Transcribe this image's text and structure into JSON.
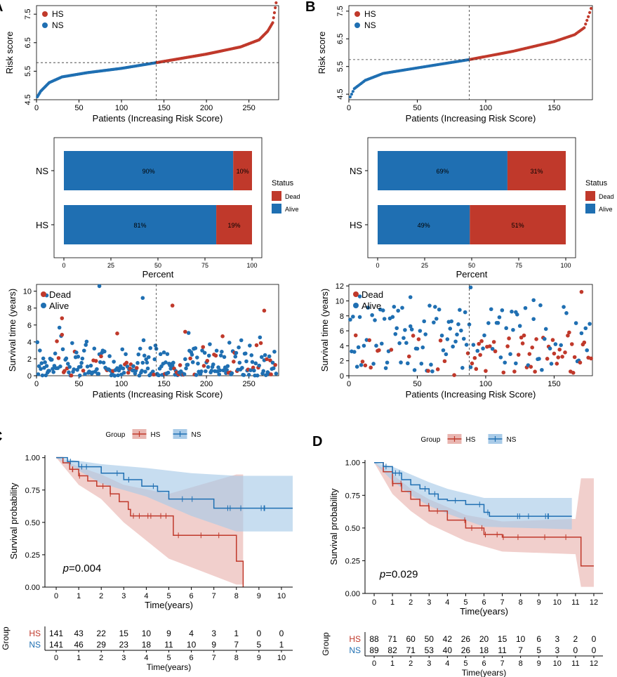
{
  "colors": {
    "hs": "#c0392b",
    "ns": "#1f6fb2",
    "hs_fill": "#e9b6b1",
    "ns_fill": "#a9cbe8",
    "axis": "#000000",
    "grid": "#bbbbbb"
  },
  "chart_data": [
    {
      "panel": "A",
      "type": "scatter",
      "name": "risk-score-A",
      "panel_label": "A",
      "xlabel": "Patients (Increasing Risk Score)",
      "ylabel": "Risk score",
      "xlim": [
        0,
        285
      ],
      "ylim": [
        4.5,
        7.8
      ],
      "xticks": [
        "0",
        "50",
        "100",
        "150",
        "200",
        "250"
      ],
      "yticks": [
        "4.5",
        "5.5",
        "6.5",
        "7.5"
      ],
      "legend": [
        "HS",
        "NS"
      ],
      "n_patients": 282,
      "cutoff_index": 141,
      "cutoff_score": 5.8,
      "curve_points": [
        [
          1,
          4.6
        ],
        [
          5,
          4.8
        ],
        [
          15,
          5.1
        ],
        [
          30,
          5.3
        ],
        [
          60,
          5.45
        ],
        [
          100,
          5.6
        ],
        [
          141,
          5.8
        ],
        [
          200,
          6.1
        ],
        [
          240,
          6.35
        ],
        [
          262,
          6.6
        ],
        [
          272,
          6.9
        ],
        [
          278,
          7.2
        ],
        [
          282,
          7.9
        ]
      ]
    },
    {
      "panel": "B",
      "type": "scatter",
      "name": "risk-score-B",
      "panel_label": "B",
      "xlabel": "Patients (Increasing Risk Score)",
      "ylabel": "Risk score",
      "xlim": [
        0,
        178
      ],
      "ylim": [
        4.3,
        7.7
      ],
      "xticks": [
        "0",
        "50",
        "100",
        "150"
      ],
      "yticks": [
        "4.5",
        "5.5",
        "6.5",
        "7.5"
      ],
      "legend": [
        "HS",
        "NS"
      ],
      "n_patients": 177,
      "cutoff_index": 88,
      "cutoff_score": 5.75,
      "curve_points": [
        [
          1,
          4.4
        ],
        [
          4,
          4.7
        ],
        [
          12,
          5.0
        ],
        [
          25,
          5.25
        ],
        [
          50,
          5.45
        ],
        [
          88,
          5.75
        ],
        [
          120,
          6.05
        ],
        [
          150,
          6.4
        ],
        [
          165,
          6.65
        ],
        [
          172,
          6.9
        ],
        [
          175,
          7.3
        ],
        [
          177,
          7.6
        ]
      ]
    },
    {
      "panel": "A",
      "type": "bar",
      "name": "status-A",
      "xlabel": "Percent",
      "xticks": [
        "0",
        "25",
        "50",
        "75",
        "100"
      ],
      "categories": [
        "NS",
        "HS"
      ],
      "series": [
        {
          "name": "Alive",
          "values": [
            90,
            81
          ]
        },
        {
          "name": "Dead",
          "values": [
            10,
            19
          ]
        }
      ],
      "labels": [
        [
          "90%",
          "10%"
        ],
        [
          "81%",
          "19%"
        ]
      ],
      "legend_title": "Status",
      "legend": [
        "Dead",
        "Alive"
      ]
    },
    {
      "panel": "B",
      "type": "bar",
      "name": "status-B",
      "xlabel": "Percent",
      "xticks": [
        "0",
        "25",
        "50",
        "75",
        "100"
      ],
      "categories": [
        "NS",
        "HS"
      ],
      "series": [
        {
          "name": "Alive",
          "values": [
            69,
            49
          ]
        },
        {
          "name": "Dead",
          "values": [
            31,
            51
          ]
        }
      ],
      "labels": [
        [
          "69%",
          "31%"
        ],
        [
          "49%",
          "51%"
        ]
      ],
      "legend_title": "Status",
      "legend": [
        "Dead",
        "Alive"
      ]
    },
    {
      "panel": "A",
      "type": "scatter",
      "name": "survival-time-A",
      "xlabel": "Patients (Increasing Risk Score)",
      "ylabel": "Survival time (years)",
      "xlim": [
        0,
        285
      ],
      "ylim": [
        0,
        10.8
      ],
      "xticks": [
        "0",
        "50",
        "100",
        "150",
        "200",
        "250"
      ],
      "yticks": [
        "0",
        "2",
        "4",
        "6",
        "8",
        "10"
      ],
      "legend": [
        "Dead",
        "Alive"
      ],
      "cutoff_index": 141,
      "n_patients": 282,
      "dead_fraction": 0.145,
      "highlight_points": [
        {
          "x": 74,
          "y": 10.6,
          "status": "Alive"
        },
        {
          "x": 30,
          "y": 6.8,
          "status": "Dead"
        },
        {
          "x": 125,
          "y": 9.2,
          "status": "Alive"
        },
        {
          "x": 160,
          "y": 8.3,
          "status": "Dead"
        },
        {
          "x": 268,
          "y": 7.7,
          "status": "Dead"
        },
        {
          "x": 95,
          "y": 5.0,
          "status": "Dead"
        },
        {
          "x": 175,
          "y": 5.2,
          "status": "Dead"
        },
        {
          "x": 12,
          "y": 9.5,
          "status": "Alive"
        }
      ]
    },
    {
      "panel": "B",
      "type": "scatter",
      "name": "survival-time-B",
      "xlabel": "Patients (Increasing Risk Score)",
      "ylabel": "Survival time (years)",
      "xlim": [
        0,
        178
      ],
      "ylim": [
        0,
        12.2
      ],
      "xticks": [
        "0",
        "50",
        "100",
        "150"
      ],
      "yticks": [
        "0",
        "2",
        "4",
        "6",
        "8",
        "10",
        "12"
      ],
      "legend": [
        "Dead",
        "Alive"
      ],
      "cutoff_index": 88,
      "n_patients": 177,
      "dead_fraction": 0.38,
      "highlight_points": [
        {
          "x": 89,
          "y": 11.8,
          "status": "Alive"
        },
        {
          "x": 170,
          "y": 11.2,
          "status": "Dead"
        },
        {
          "x": 45,
          "y": 10.5,
          "status": "Alive"
        },
        {
          "x": 135,
          "y": 10.1,
          "status": "Alive"
        },
        {
          "x": 8,
          "y": 10.6,
          "status": "Alive"
        },
        {
          "x": 122,
          "y": 8.5,
          "status": "Alive"
        }
      ]
    },
    {
      "panel": "C",
      "type": "line",
      "name": "km-C",
      "panel_label": "C",
      "xlabel": "Time(years)",
      "ylabel": "Survival probability",
      "xlim": [
        -0.5,
        10.5
      ],
      "ylim": [
        0,
        1.02
      ],
      "xticks": [
        "0",
        "1",
        "2",
        "3",
        "4",
        "5",
        "6",
        "7",
        "8",
        "9",
        "10"
      ],
      "yticks": [
        "0.00",
        "0.25",
        "0.50",
        "0.75",
        "1.00"
      ],
      "legend_title": "Group",
      "legend": [
        "HS",
        "NS"
      ],
      "pvalue_prefix": "p",
      "pvalue": "=0.004",
      "series": [
        {
          "name": "HS",
          "points": [
            [
              0,
              1.0
            ],
            [
              0.3,
              0.96
            ],
            [
              0.6,
              0.91
            ],
            [
              1.0,
              0.86
            ],
            [
              1.4,
              0.82
            ],
            [
              1.8,
              0.78
            ],
            [
              2.4,
              0.72
            ],
            [
              2.8,
              0.66
            ],
            [
              3.2,
              0.6
            ],
            [
              3.3,
              0.55
            ],
            [
              5.2,
              0.4
            ],
            [
              8.0,
              0.2
            ],
            [
              8.3,
              0.0
            ]
          ],
          "upper": [
            [
              0,
              1.0
            ],
            [
              1,
              0.93
            ],
            [
              2,
              0.87
            ],
            [
              3,
              0.79
            ],
            [
              5,
              0.72
            ],
            [
              8,
              0.87
            ],
            [
              8.3,
              0.87
            ]
          ],
          "lower": [
            [
              0,
              1.0
            ],
            [
              1,
              0.79
            ],
            [
              2,
              0.68
            ],
            [
              3,
              0.5
            ],
            [
              5,
              0.22
            ],
            [
              8,
              0.02
            ],
            [
              8.3,
              0.02
            ]
          ]
        },
        {
          "name": "NS",
          "points": [
            [
              0,
              1.0
            ],
            [
              0.5,
              0.97
            ],
            [
              1,
              0.93
            ],
            [
              2,
              0.88
            ],
            [
              3,
              0.83
            ],
            [
              3.8,
              0.78
            ],
            [
              4.5,
              0.74
            ],
            [
              5,
              0.68
            ],
            [
              7,
              0.61
            ],
            [
              10.5,
              0.61
            ]
          ],
          "upper": [
            [
              0,
              1.0
            ],
            [
              2,
              0.95
            ],
            [
              4,
              0.92
            ],
            [
              6,
              0.88
            ],
            [
              8,
              0.86
            ],
            [
              10.5,
              0.86
            ]
          ],
          "lower": [
            [
              0,
              1.0
            ],
            [
              2,
              0.8
            ],
            [
              4,
              0.7
            ],
            [
              6,
              0.55
            ],
            [
              8,
              0.43
            ],
            [
              10.5,
              0.43
            ]
          ]
        }
      ],
      "risk_table": {
        "title": "Group",
        "xlabel": "Time(years)",
        "rows": [
          {
            "name": "HS",
            "values": [
              "141",
              "43",
              "22",
              "15",
              "10",
              "9",
              "4",
              "3",
              "1",
              "0",
              "0"
            ]
          },
          {
            "name": "NS",
            "values": [
              "141",
              "46",
              "29",
              "23",
              "18",
              "11",
              "10",
              "9",
              "7",
              "5",
              "1"
            ]
          }
        ]
      }
    },
    {
      "panel": "D",
      "type": "line",
      "name": "km-D",
      "panel_label": "D",
      "xlabel": "Time(years)",
      "ylabel": "Survival probability",
      "xlim": [
        -0.5,
        12.5
      ],
      "ylim": [
        0,
        1.02
      ],
      "xticks": [
        "0",
        "1",
        "2",
        "3",
        "4",
        "5",
        "6",
        "7",
        "8",
        "9",
        "10",
        "11",
        "12"
      ],
      "yticks": [
        "0.00",
        "0.25",
        "0.50",
        "0.75",
        "1.00"
      ],
      "legend_title": "Group",
      "legend": [
        "HS",
        "NS"
      ],
      "pvalue_prefix": "p",
      "pvalue": "=0.029",
      "series": [
        {
          "name": "HS",
          "points": [
            [
              0,
              1.0
            ],
            [
              0.5,
              0.93
            ],
            [
              1,
              0.84
            ],
            [
              1.5,
              0.78
            ],
            [
              2,
              0.72
            ],
            [
              2.5,
              0.67
            ],
            [
              3,
              0.63
            ],
            [
              4,
              0.56
            ],
            [
              5,
              0.5
            ],
            [
              6,
              0.45
            ],
            [
              7,
              0.43
            ],
            [
              11,
              0.43
            ],
            [
              11.3,
              0.21
            ],
            [
              12,
              0.21
            ]
          ],
          "upper": [
            [
              0,
              1.0
            ],
            [
              1,
              0.91
            ],
            [
              2,
              0.8
            ],
            [
              3,
              0.72
            ],
            [
              5,
              0.6
            ],
            [
              7,
              0.55
            ],
            [
              11,
              0.57
            ],
            [
              11.3,
              0.88
            ],
            [
              12,
              0.88
            ]
          ],
          "lower": [
            [
              0,
              1.0
            ],
            [
              1,
              0.76
            ],
            [
              2,
              0.63
            ],
            [
              3,
              0.53
            ],
            [
              5,
              0.4
            ],
            [
              7,
              0.32
            ],
            [
              11,
              0.3
            ],
            [
              11.3,
              0.05
            ],
            [
              12,
              0.05
            ]
          ]
        },
        {
          "name": "NS",
          "points": [
            [
              0,
              1.0
            ],
            [
              0.5,
              0.97
            ],
            [
              1,
              0.92
            ],
            [
              1.5,
              0.87
            ],
            [
              2,
              0.83
            ],
            [
              2.5,
              0.8
            ],
            [
              3,
              0.76
            ],
            [
              3.5,
              0.72
            ],
            [
              4,
              0.71
            ],
            [
              5,
              0.68
            ],
            [
              6,
              0.62
            ],
            [
              6.3,
              0.59
            ],
            [
              10.8,
              0.59
            ]
          ],
          "upper": [
            [
              0,
              1.0
            ],
            [
              1,
              0.97
            ],
            [
              2,
              0.91
            ],
            [
              3,
              0.85
            ],
            [
              4,
              0.8
            ],
            [
              6,
              0.73
            ],
            [
              10.8,
              0.73
            ]
          ],
          "lower": [
            [
              0,
              1.0
            ],
            [
              1,
              0.86
            ],
            [
              2,
              0.75
            ],
            [
              3,
              0.67
            ],
            [
              4,
              0.61
            ],
            [
              6,
              0.51
            ],
            [
              10.8,
              0.49
            ]
          ]
        }
      ],
      "risk_table": {
        "title": "Group",
        "xlabel": "Time(years)",
        "rows": [
          {
            "name": "HS",
            "values": [
              "88",
              "71",
              "60",
              "50",
              "42",
              "26",
              "20",
              "15",
              "10",
              "6",
              "3",
              "2",
              "0"
            ]
          },
          {
            "name": "NS",
            "values": [
              "89",
              "82",
              "71",
              "53",
              "40",
              "26",
              "18",
              "11",
              "7",
              "5",
              "3",
              "0",
              "0"
            ]
          }
        ]
      }
    }
  ]
}
